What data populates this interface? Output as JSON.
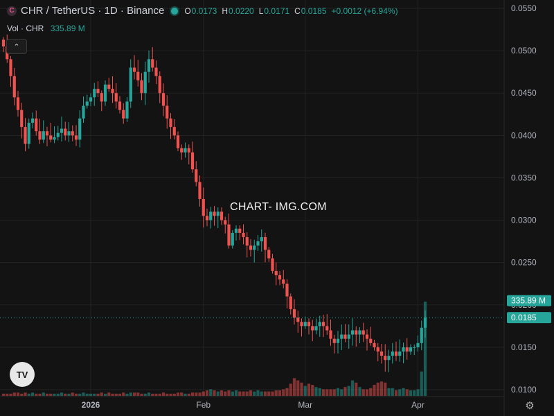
{
  "header": {
    "logo_text": "C",
    "symbol": "CHR / TetherUS · 1D · Binance",
    "ohlc": {
      "o_label": "O",
      "o": "0.0173",
      "h_label": "H",
      "h": "0.0220",
      "l_label": "L",
      "l": "0.0171",
      "c_label": "C",
      "c": "0.0185",
      "change": "+0.0012 (+6.94%)"
    },
    "status_color": "#26a69a"
  },
  "volume": {
    "label": "Vol · CHR",
    "value": "335.89 M"
  },
  "watermark": "CHART- IMG.COM",
  "tv_logo_text": "TV",
  "icons": {
    "collapse": "chevron-up-icon",
    "settings": "gear-icon",
    "logo": "tradingview-logo-icon"
  },
  "colors": {
    "up": "#26a69a",
    "down": "#ef5350",
    "background": "#131313",
    "grid": "#232323"
  },
  "chart_data": {
    "type": "candlestick",
    "symbol": "CHR / TetherUS",
    "interval": "1D",
    "exchange": "Binance",
    "yaxis": {
      "range": [
        0.0095,
        0.056
      ],
      "ticks": [
        "0.0550",
        "0.0500",
        "0.0450",
        "0.0400",
        "0.0350",
        "0.0300",
        "0.0250",
        "0.0200",
        "0.0150",
        "0.0100"
      ],
      "tick_values": [
        0.055,
        0.05,
        0.045,
        0.04,
        0.035,
        0.03,
        0.025,
        0.02,
        0.015,
        0.01
      ]
    },
    "xaxis": {
      "labels": [
        {
          "text": "2026",
          "index": 24,
          "bold": true
        },
        {
          "text": "Feb",
          "index": 55,
          "bold": false
        },
        {
          "text": "Mar",
          "index": 83,
          "bold": false
        },
        {
          "text": "Apr",
          "index": 114,
          "bold": false
        }
      ]
    },
    "price_labels": {
      "volume_tag": "335.89 M",
      "last_price_tag": "0.0185",
      "last_price": 0.0185,
      "volume_value": 0.0205
    },
    "closes": [
      0.0505,
      0.049,
      0.047,
      0.0445,
      0.043,
      0.041,
      0.039,
      0.0415,
      0.042,
      0.0405,
      0.0395,
      0.0405,
      0.04,
      0.0395,
      0.0398,
      0.0403,
      0.0408,
      0.04,
      0.0405,
      0.04,
      0.0395,
      0.042,
      0.0435,
      0.044,
      0.0445,
      0.0455,
      0.045,
      0.044,
      0.046,
      0.0455,
      0.045,
      0.044,
      0.043,
      0.042,
      0.044,
      0.048,
      0.0475,
      0.0465,
      0.045,
      0.0475,
      0.049,
      0.048,
      0.047,
      0.045,
      0.0435,
      0.042,
      0.041,
      0.04,
      0.0385,
      0.038,
      0.0385,
      0.038,
      0.036,
      0.0345,
      0.0325,
      0.0305,
      0.03,
      0.031,
      0.0305,
      0.031,
      0.03,
      0.0295,
      0.027,
      0.0285,
      0.029,
      0.0285,
      0.028,
      0.027,
      0.0265,
      0.027,
      0.0275,
      0.028,
      0.0265,
      0.0255,
      0.024,
      0.0235,
      0.023,
      0.0225,
      0.021,
      0.0195,
      0.0185,
      0.018,
      0.0175,
      0.018,
      0.0175,
      0.017,
      0.0175,
      0.018,
      0.0175,
      0.017,
      0.016,
      0.0155,
      0.016,
      0.0165,
      0.016,
      0.0165,
      0.017,
      0.0165,
      0.017,
      0.0165,
      0.016,
      0.0155,
      0.015,
      0.0145,
      0.014,
      0.0135,
      0.014,
      0.0145,
      0.014,
      0.0145,
      0.015,
      0.0145,
      0.015,
      0.015,
      0.0155,
      0.0173,
      0.0185
    ],
    "volumes": [
      2,
      2,
      2,
      3,
      3,
      2,
      3,
      2,
      3,
      2,
      2,
      3,
      2,
      2,
      2,
      2,
      3,
      2,
      2,
      3,
      2,
      2,
      3,
      2,
      2,
      2,
      2,
      3,
      2,
      3,
      2,
      2,
      2,
      3,
      2,
      3,
      3,
      3,
      2,
      2,
      3,
      2,
      2,
      2,
      3,
      2,
      2,
      2,
      3,
      3,
      2,
      2,
      3,
      3,
      3,
      4,
      5,
      6,
      5,
      4,
      5,
      4,
      5,
      4,
      5,
      4,
      4,
      4,
      5,
      4,
      5,
      4,
      4,
      4,
      4,
      5,
      5,
      6,
      7,
      11,
      16,
      14,
      12,
      9,
      11,
      10,
      8,
      7,
      6,
      6,
      6,
      6,
      7,
      6,
      8,
      9,
      14,
      12,
      8,
      6,
      6,
      7,
      10,
      12,
      13,
      12,
      7,
      7,
      5,
      6,
      7,
      6,
      5,
      5,
      6,
      22,
      85
    ]
  }
}
